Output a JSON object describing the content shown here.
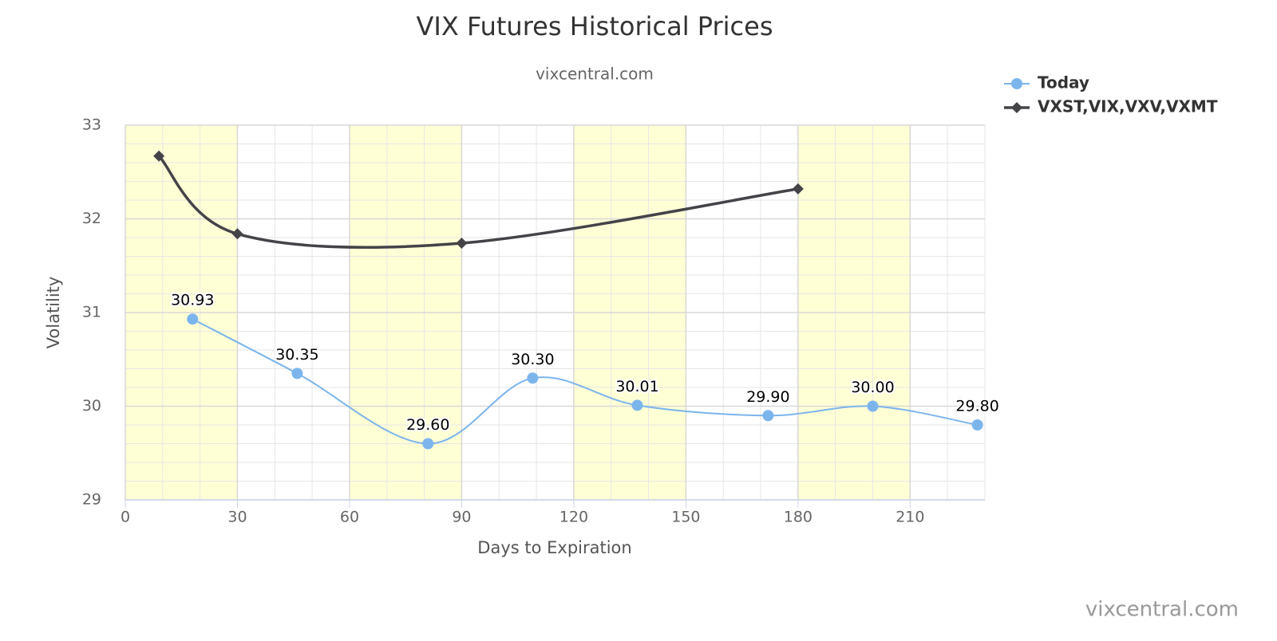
{
  "chart_data": {
    "type": "spline",
    "title": "VIX Futures Historical Prices",
    "subtitle": "vixcentral.com",
    "credits": "vixcentral.com",
    "x_label": "Days to Expiration",
    "y_label": "Volatility",
    "xlim": [
      0,
      230
    ],
    "ylim": [
      29,
      33
    ],
    "xticks": [
      0,
      30,
      60,
      90,
      120,
      150,
      180,
      210
    ],
    "yticks": [
      29,
      30,
      31,
      32,
      33
    ],
    "x_minor_step": 10,
    "y_minor_step": 0.2,
    "grid": true,
    "legend": "top-right",
    "plot_bands": [
      [
        0,
        30
      ],
      [
        60,
        90
      ],
      [
        120,
        150
      ],
      [
        180,
        210
      ]
    ],
    "band_color": "#ffffd6",
    "series": [
      {
        "name": "Today",
        "color": "#7cb5ec",
        "marker": "circle",
        "x": [
          18,
          46,
          81,
          109,
          137,
          172,
          200,
          228
        ],
        "values": [
          30.93,
          30.35,
          29.6,
          30.3,
          30.01,
          29.9,
          30.0,
          29.8
        ],
        "value_labels": [
          "30.93",
          "30.35",
          "29.60",
          "30.30",
          "30.01",
          "29.90",
          "30.00",
          "29.80"
        ]
      },
      {
        "name": "VXST,VIX,VXV,VXMT",
        "color": "#434348",
        "marker": "diamond",
        "x": [
          9,
          30,
          90,
          180
        ],
        "values": [
          32.67,
          31.84,
          31.74,
          32.32
        ]
      }
    ]
  }
}
